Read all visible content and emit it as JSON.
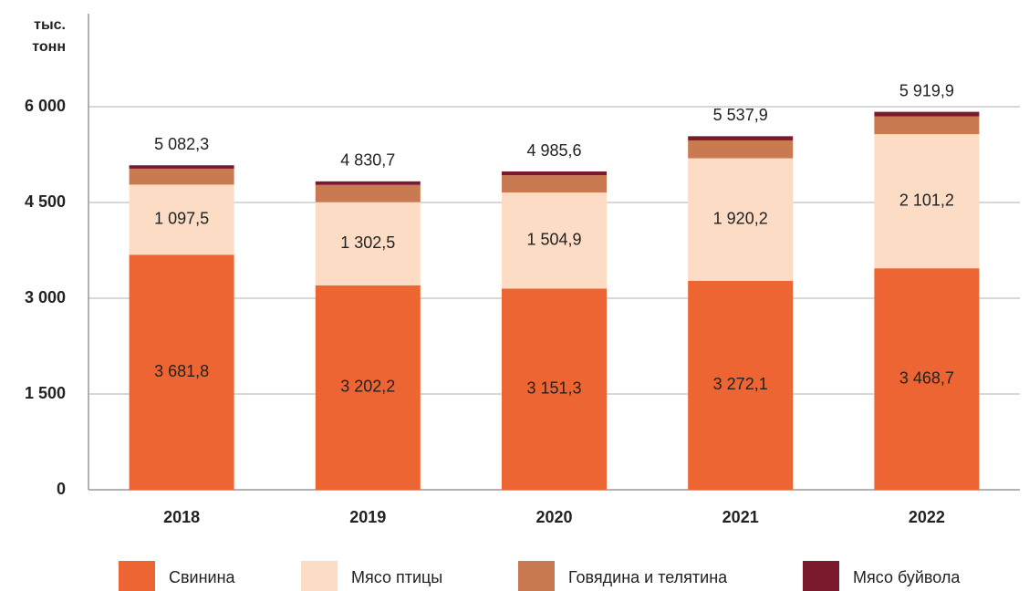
{
  "chart_data": {
    "type": "stacked_bar",
    "y_label": [
      "тыс.",
      "тонн"
    ],
    "categories": [
      "2018",
      "2019",
      "2020",
      "2021",
      "2022"
    ],
    "series": [
      {
        "name": "Свинина",
        "color": "#ec6532",
        "values": [
          3681.8,
          3202.2,
          3151.3,
          3272.1,
          3468.7
        ],
        "value_labels": [
          "3 681,8",
          "3 202,2",
          "3 151,3",
          "3 272,1",
          "3 468,7"
        ]
      },
      {
        "name": "Мясо птицы",
        "color": "#fcdcc4",
        "values": [
          1097.5,
          1302.5,
          1504.9,
          1920.2,
          2101.2
        ],
        "value_labels": [
          "1 097,5",
          "1 302,5",
          "1 504,9",
          "1 920,2",
          "2 101,2"
        ]
      },
      {
        "name": "Говядина и телятина",
        "color": "#c97a50",
        "values": [
          250,
          270,
          270,
          280,
          280
        ]
      },
      {
        "name": "Мясо буйвола",
        "color": "#7a1a2c",
        "values": [
          53,
          56,
          59.4,
          65.6,
          70
        ]
      }
    ],
    "totals": [
      5082.3,
      4830.7,
      4985.6,
      5537.9,
      5919.9
    ],
    "totals_labels": [
      "5 082,3",
      "4 830,7",
      "4 985,6",
      "5 537,9",
      "5 919,9"
    ],
    "ylim": [
      0,
      6000
    ],
    "yticks": [
      0,
      {
        "value": 1500,
        "label": "1 500"
      },
      {
        "value": 3000,
        "label": "3 000"
      },
      {
        "value": 4500,
        "label": "4 500"
      },
      {
        "value": 6000,
        "label": "6 000"
      }
    ],
    "grid": true
  }
}
